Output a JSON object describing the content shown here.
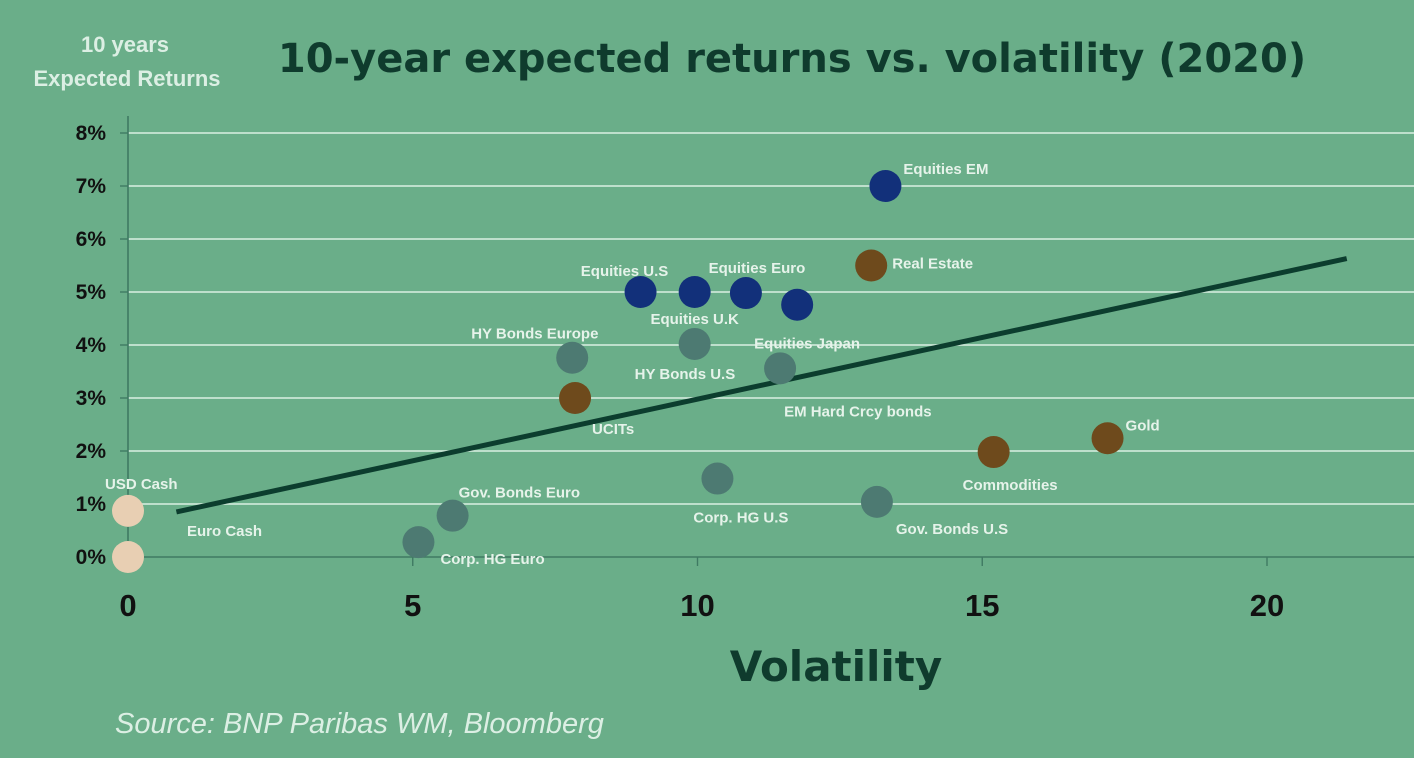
{
  "chart_data": {
    "type": "scatter",
    "title": "10-year expected returns vs. volatility (2020)",
    "ylabel_lines": [
      "10 years",
      "Expected Returns"
    ],
    "xlabel": "Volatility",
    "source": "Source: BNP Paribas WM, Bloomberg",
    "xlim": [
      0,
      22.4
    ],
    "ylim": [
      0,
      8
    ],
    "xticks": [
      0,
      5,
      10,
      15,
      20
    ],
    "xtick_labels": [
      "0",
      "5",
      "10",
      "15",
      "20"
    ],
    "yticks": [
      0,
      1,
      2,
      3,
      4,
      5,
      6,
      7,
      8
    ],
    "ytick_labels": [
      "0%",
      "1%",
      "2%",
      "3%",
      "4%",
      "5%",
      "6%",
      "7%",
      "8%"
    ],
    "grid": true,
    "colors": {
      "equities": "#12307a",
      "bonds": "#4d7a72",
      "alternatives": "#6e4a1c",
      "cash": "#e8cfb3",
      "trend": "#0c3d2e"
    },
    "points": [
      {
        "label": "Equities EM",
        "x": 13.3,
        "y": 7.0,
        "group": "equities"
      },
      {
        "label": "Equities U.S",
        "x": 9.0,
        "y": 5.0,
        "group": "equities"
      },
      {
        "label": "Equities U.K",
        "x": 9.95,
        "y": 5.0,
        "group": "equities"
      },
      {
        "label": "Equities Euro",
        "x": 10.85,
        "y": 4.98,
        "group": "equities"
      },
      {
        "label": "Equities Japan",
        "x": 11.75,
        "y": 4.76,
        "group": "equities"
      },
      {
        "label": "Real Estate",
        "x": 13.05,
        "y": 5.5,
        "group": "alternatives"
      },
      {
        "label": "UCITs",
        "x": 7.85,
        "y": 3.0,
        "group": "alternatives"
      },
      {
        "label": "Commodities",
        "x": 15.2,
        "y": 1.98,
        "group": "alternatives"
      },
      {
        "label": "Gold",
        "x": 17.2,
        "y": 2.24,
        "group": "alternatives"
      },
      {
        "label": "HY Bonds Europe",
        "x": 7.8,
        "y": 3.76,
        "group": "bonds"
      },
      {
        "label": "HY Bonds U.S",
        "x": 9.95,
        "y": 4.02,
        "group": "bonds"
      },
      {
        "label": "EM Hard Crcy bonds",
        "x": 11.45,
        "y": 3.56,
        "group": "bonds"
      },
      {
        "label": "Gov. Bonds Euro",
        "x": 5.7,
        "y": 0.78,
        "group": "bonds"
      },
      {
        "label": "Corp. HG Euro",
        "x": 5.1,
        "y": 0.28,
        "group": "bonds"
      },
      {
        "label": "Corp. HG U.S",
        "x": 10.35,
        "y": 1.48,
        "group": "bonds"
      },
      {
        "label": "Gov. Bonds U.S",
        "x": 13.15,
        "y": 1.04,
        "group": "bonds"
      },
      {
        "label": "USD Cash",
        "x": 0.0,
        "y": 0.87,
        "group": "cash"
      },
      {
        "label": "Euro Cash",
        "x": 0.0,
        "y": 0.0,
        "group": "cash"
      }
    ],
    "trendline": {
      "x": [
        0.85,
        21.4
      ],
      "y": [
        0.85,
        5.63
      ]
    }
  }
}
